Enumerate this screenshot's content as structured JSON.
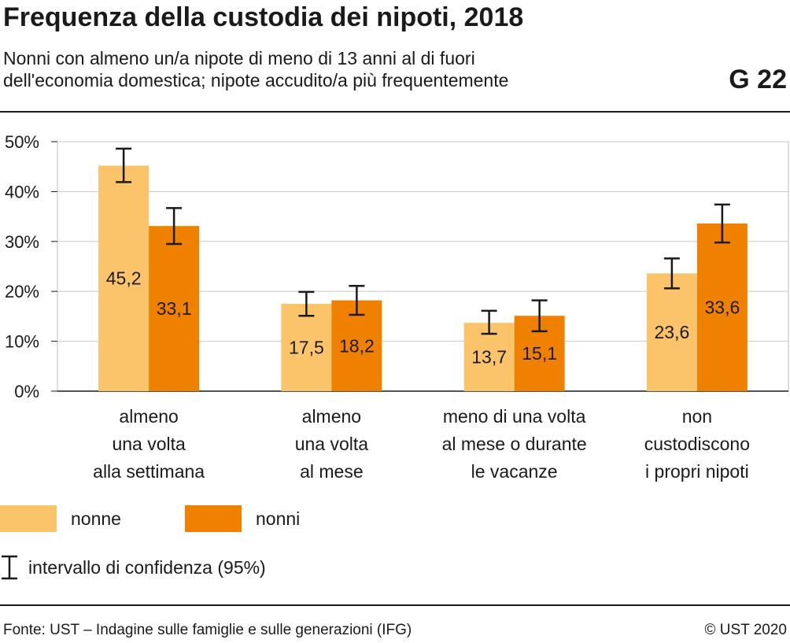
{
  "header": {
    "title": "Frequenza della custodia dei nipoti, 2018",
    "subtitle_line1": "Nonni con almeno un/a nipote di meno di 13 anni al di fuori",
    "subtitle_line2": "dell'economia domestica; nipote accudito/a più frequentemente",
    "code": "G 22"
  },
  "chart_data": {
    "type": "bar",
    "title": "Frequenza della custodia dei nipoti, 2018",
    "categories": [
      [
        "almeno",
        "una volta",
        "alla settimana"
      ],
      [
        "almeno",
        "una volta",
        "al mese"
      ],
      [
        "meno di una volta",
        "al mese o durante",
        "le vacanze"
      ],
      [
        "non",
        "custodiscono",
        "i propri nipoti"
      ]
    ],
    "series": [
      {
        "name": "nonne",
        "color": "#FCC46A",
        "values": [
          45.2,
          17.5,
          13.7,
          23.6
        ],
        "ci_low": [
          41.9,
          15.1,
          11.5,
          20.6
        ],
        "ci_high": [
          48.6,
          19.9,
          16.1,
          26.6
        ],
        "labels": [
          "45,2",
          "17,5",
          "13,7",
          "23,6"
        ]
      },
      {
        "name": "nonni",
        "color": "#F08100",
        "values": [
          33.1,
          18.2,
          15.1,
          33.6
        ],
        "ci_low": [
          29.5,
          15.3,
          12.0,
          29.8
        ],
        "ci_high": [
          36.7,
          21.1,
          18.2,
          37.4
        ],
        "labels": [
          "33,1",
          "18,2",
          "15,1",
          "33,6"
        ]
      }
    ],
    "ylim": [
      0,
      50
    ],
    "yticks": [
      0,
      10,
      20,
      30,
      40,
      50
    ],
    "ytick_labels": [
      "0%",
      "10%",
      "20%",
      "30%",
      "40%",
      "50%"
    ],
    "grid": true,
    "legend": "bottom-left",
    "ci_legend_label": "intervallo di confidenza (95%)"
  },
  "footer": {
    "source": "Fonte: UST – Indagine sulle famiglie e sulle generazioni (IFG)",
    "copyright": "© UST 2020"
  }
}
